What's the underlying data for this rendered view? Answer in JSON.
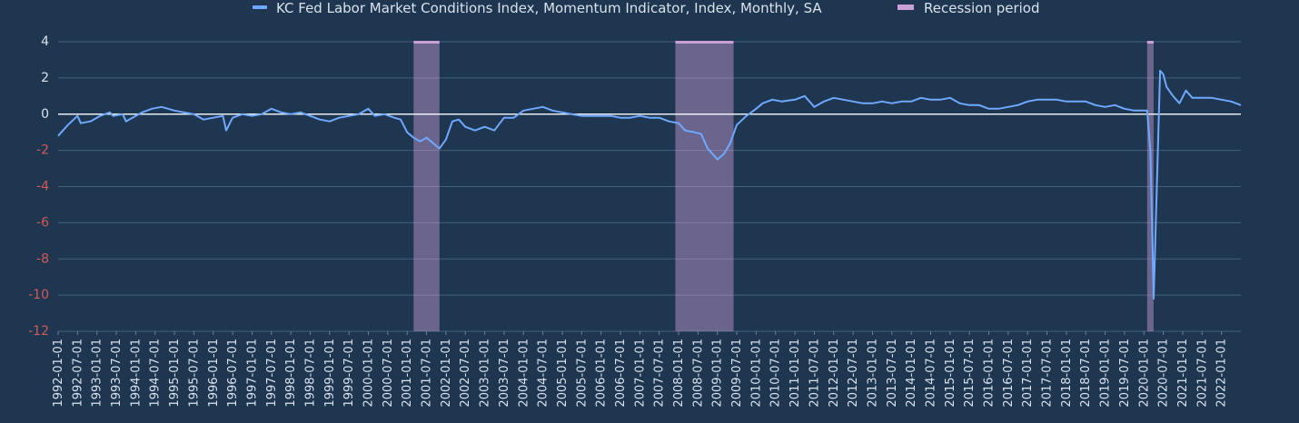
{
  "chart_data": {
    "type": "line",
    "colors": {
      "background": "#1e3650",
      "series": "#6fa8ff",
      "recession": "#c9a0d8",
      "positive_tick": "#d9e2ec",
      "negative_tick": "#d05a5a",
      "zero_line": "#e8eef4",
      "grid": "#44607c"
    },
    "legend": {
      "position": "top-center",
      "entries": [
        {
          "name": "KC Fed Labor Market Conditions Index, Momentum Indicator, Index, Monthly, SA",
          "kind": "line",
          "color": "#6fa8ff"
        },
        {
          "name": "Recession period",
          "kind": "patch",
          "color": "#c9a0d8"
        }
      ]
    },
    "ylim": [
      -12,
      4
    ],
    "yticks": [
      "4",
      "2",
      "0",
      "-2",
      "-4",
      "-6",
      "-8",
      "-10",
      "-12"
    ],
    "xlim": [
      "1992-01-01",
      "2022-07-01"
    ],
    "xticks": [
      "1992-01-01",
      "1992-07-01",
      "1993-01-01",
      "1993-07-01",
      "1994-01-01",
      "1994-07-01",
      "1995-01-01",
      "1995-07-01",
      "1996-01-01",
      "1996-07-01",
      "1997-01-01",
      "1997-07-01",
      "1998-01-01",
      "1998-07-01",
      "1999-01-01",
      "1999-07-01",
      "2000-01-01",
      "2000-07-01",
      "2001-01-01",
      "2001-07-01",
      "2002-01-01",
      "2002-07-01",
      "2003-01-01",
      "2003-07-01",
      "2004-01-01",
      "2004-07-01",
      "2005-01-01",
      "2005-07-01",
      "2006-01-01",
      "2006-07-01",
      "2007-01-01",
      "2007-07-01",
      "2008-01-01",
      "2008-07-01",
      "2009-01-01",
      "2009-07-01",
      "2010-01-01",
      "2010-07-01",
      "2011-01-01",
      "2011-07-01",
      "2012-01-01",
      "2012-07-01",
      "2013-01-01",
      "2013-07-01",
      "2014-01-01",
      "2014-07-01",
      "2015-01-01",
      "2015-07-01",
      "2016-01-01",
      "2016-07-01",
      "2017-01-01",
      "2017-07-01",
      "2018-01-01",
      "2018-07-01",
      "2019-01-01",
      "2019-07-01",
      "2020-01-01",
      "2020-07-01",
      "2021-01-01",
      "2021-07-01",
      "2022-01-01"
    ],
    "grid": true,
    "zero_line": true,
    "recessions": [
      {
        "start": "2001-03-01",
        "end": "2001-11-01"
      },
      {
        "start": "2007-12-01",
        "end": "2009-06-01"
      },
      {
        "start": "2020-02-01",
        "end": "2020-04-01"
      }
    ],
    "series": [
      {
        "name": "KC Fed Labor Market Conditions Index, Momentum Indicator, Index, Monthly, SA",
        "points": [
          [
            "1992-01-01",
            -1.2
          ],
          [
            "1992-04-01",
            -0.6
          ],
          [
            "1992-07-01",
            -0.1
          ],
          [
            "1992-08-01",
            -0.5
          ],
          [
            "1992-11-01",
            -0.4
          ],
          [
            "1993-02-01",
            -0.1
          ],
          [
            "1993-05-01",
            0.1
          ],
          [
            "1993-06-01",
            -0.1
          ],
          [
            "1993-09-01",
            0.0
          ],
          [
            "1993-10-01",
            -0.4
          ],
          [
            "1994-01-01",
            -0.1
          ],
          [
            "1994-03-01",
            0.1
          ],
          [
            "1994-06-01",
            0.3
          ],
          [
            "1994-09-01",
            0.4
          ],
          [
            "1995-01-01",
            0.2
          ],
          [
            "1995-04-01",
            0.1
          ],
          [
            "1995-07-01",
            0.0
          ],
          [
            "1995-10-01",
            -0.3
          ],
          [
            "1996-01-01",
            -0.2
          ],
          [
            "1996-04-01",
            -0.1
          ],
          [
            "1996-05-01",
            -0.9
          ],
          [
            "1996-07-01",
            -0.2
          ],
          [
            "1996-10-01",
            0.0
          ],
          [
            "1997-01-01",
            -0.1
          ],
          [
            "1997-04-01",
            0.0
          ],
          [
            "1997-07-01",
            0.3
          ],
          [
            "1997-10-01",
            0.1
          ],
          [
            "1998-01-01",
            0.0
          ],
          [
            "1998-04-01",
            0.1
          ],
          [
            "1998-07-01",
            -0.1
          ],
          [
            "1998-10-01",
            -0.3
          ],
          [
            "1999-01-01",
            -0.4
          ],
          [
            "1999-04-01",
            -0.2
          ],
          [
            "1999-07-01",
            -0.1
          ],
          [
            "1999-10-01",
            0.0
          ],
          [
            "2000-01-01",
            0.3
          ],
          [
            "2000-03-01",
            -0.1
          ],
          [
            "2000-06-01",
            0.0
          ],
          [
            "2000-09-01",
            -0.2
          ],
          [
            "2000-11-01",
            -0.3
          ],
          [
            "2001-01-01",
            -1.0
          ],
          [
            "2001-03-01",
            -1.3
          ],
          [
            "2001-05-01",
            -1.5
          ],
          [
            "2001-07-01",
            -1.3
          ],
          [
            "2001-09-01",
            -1.6
          ],
          [
            "2001-11-01",
            -1.9
          ],
          [
            "2002-01-01",
            -1.4
          ],
          [
            "2002-03-01",
            -0.4
          ],
          [
            "2002-05-01",
            -0.3
          ],
          [
            "2002-07-01",
            -0.7
          ],
          [
            "2002-10-01",
            -0.9
          ],
          [
            "2003-01-01",
            -0.7
          ],
          [
            "2003-04-01",
            -0.9
          ],
          [
            "2003-07-01",
            -0.2
          ],
          [
            "2003-10-01",
            -0.2
          ],
          [
            "2004-01-01",
            0.2
          ],
          [
            "2004-04-01",
            0.3
          ],
          [
            "2004-07-01",
            0.4
          ],
          [
            "2004-10-01",
            0.2
          ],
          [
            "2005-01-01",
            0.1
          ],
          [
            "2005-04-01",
            0.0
          ],
          [
            "2005-07-01",
            -0.1
          ],
          [
            "2005-10-01",
            -0.1
          ],
          [
            "2006-01-01",
            -0.1
          ],
          [
            "2006-04-01",
            -0.1
          ],
          [
            "2006-07-01",
            -0.2
          ],
          [
            "2006-10-01",
            -0.2
          ],
          [
            "2007-01-01",
            -0.1
          ],
          [
            "2007-04-01",
            -0.2
          ],
          [
            "2007-07-01",
            -0.2
          ],
          [
            "2007-10-01",
            -0.4
          ],
          [
            "2008-01-01",
            -0.5
          ],
          [
            "2008-03-01",
            -0.9
          ],
          [
            "2008-06-01",
            -1.0
          ],
          [
            "2008-08-01",
            -1.1
          ],
          [
            "2008-10-01",
            -1.9
          ],
          [
            "2009-01-01",
            -2.5
          ],
          [
            "2009-03-01",
            -2.2
          ],
          [
            "2009-05-01",
            -1.6
          ],
          [
            "2009-07-01",
            -0.6
          ],
          [
            "2009-10-01",
            -0.1
          ],
          [
            "2010-01-01",
            0.3
          ],
          [
            "2010-03-01",
            0.6
          ],
          [
            "2010-06-01",
            0.8
          ],
          [
            "2010-09-01",
            0.7
          ],
          [
            "2011-01-01",
            0.8
          ],
          [
            "2011-04-01",
            1.0
          ],
          [
            "2011-07-01",
            0.4
          ],
          [
            "2011-10-01",
            0.7
          ],
          [
            "2012-01-01",
            0.9
          ],
          [
            "2012-04-01",
            0.8
          ],
          [
            "2012-07-01",
            0.7
          ],
          [
            "2012-10-01",
            0.6
          ],
          [
            "2013-01-01",
            0.6
          ],
          [
            "2013-04-01",
            0.7
          ],
          [
            "2013-07-01",
            0.6
          ],
          [
            "2013-10-01",
            0.7
          ],
          [
            "2014-01-01",
            0.7
          ],
          [
            "2014-04-01",
            0.9
          ],
          [
            "2014-07-01",
            0.8
          ],
          [
            "2014-10-01",
            0.8
          ],
          [
            "2015-01-01",
            0.9
          ],
          [
            "2015-04-01",
            0.6
          ],
          [
            "2015-07-01",
            0.5
          ],
          [
            "2015-10-01",
            0.5
          ],
          [
            "2016-01-01",
            0.3
          ],
          [
            "2016-04-01",
            0.3
          ],
          [
            "2016-07-01",
            0.4
          ],
          [
            "2016-10-01",
            0.5
          ],
          [
            "2017-01-01",
            0.7
          ],
          [
            "2017-04-01",
            0.8
          ],
          [
            "2017-07-01",
            0.8
          ],
          [
            "2017-10-01",
            0.8
          ],
          [
            "2018-01-01",
            0.7
          ],
          [
            "2018-04-01",
            0.7
          ],
          [
            "2018-07-01",
            0.7
          ],
          [
            "2018-10-01",
            0.5
          ],
          [
            "2019-01-01",
            0.4
          ],
          [
            "2019-04-01",
            0.5
          ],
          [
            "2019-07-01",
            0.3
          ],
          [
            "2019-10-01",
            0.2
          ],
          [
            "2020-01-01",
            0.2
          ],
          [
            "2020-02-01",
            0.2
          ],
          [
            "2020-03-01",
            -2.0
          ],
          [
            "2020-04-01",
            -10.2
          ],
          [
            "2020-05-01",
            -4.0
          ],
          [
            "2020-06-01",
            2.4
          ],
          [
            "2020-07-01",
            2.2
          ],
          [
            "2020-08-01",
            1.5
          ],
          [
            "2020-10-01",
            1.0
          ],
          [
            "2020-12-01",
            0.6
          ],
          [
            "2021-02-01",
            1.3
          ],
          [
            "2021-04-01",
            0.9
          ],
          [
            "2021-07-01",
            0.9
          ],
          [
            "2021-10-01",
            0.9
          ],
          [
            "2022-01-01",
            0.8
          ],
          [
            "2022-04-01",
            0.7
          ],
          [
            "2022-07-01",
            0.5
          ]
        ]
      }
    ]
  }
}
